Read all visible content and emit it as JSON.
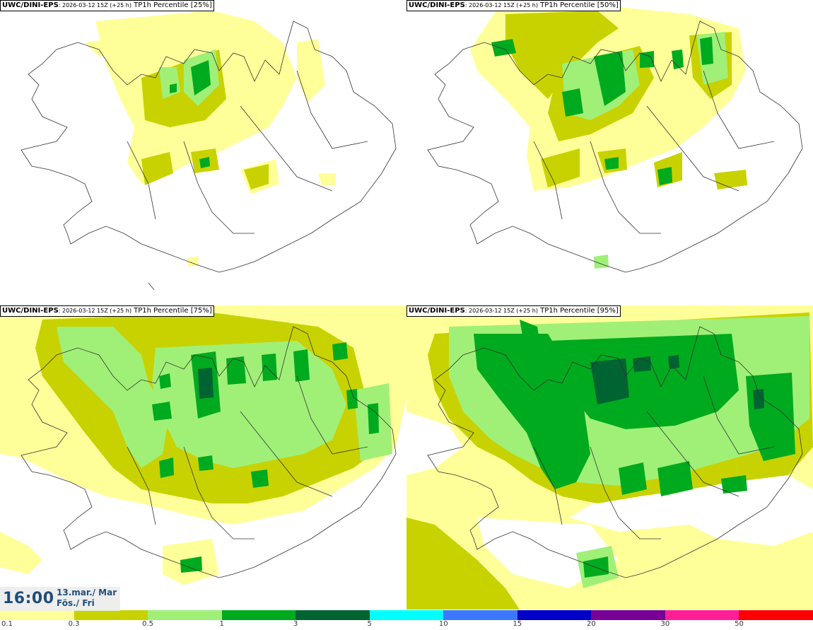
{
  "panels": [
    {
      "model": "UWC/DINI-EPS",
      "run": ": 2026-03-12 15Z (+25 h)",
      "field": " TP1h Percentile [25%]"
    },
    {
      "model": "UWC/DINI-EPS",
      "run": ": 2026-03-12 15Z (+25 h)",
      "field": " TP1h Percentile [50%]"
    },
    {
      "model": "UWC/DINI-EPS",
      "run": ": 2026-03-12 15Z (+25 h)",
      "field": " TP1h Percentile [75%]"
    },
    {
      "model": "UWC/DINI-EPS",
      "run": ": 2026-03-12 15Z (+25 h)",
      "field": " TP1h Percentile [95%]"
    }
  ],
  "valid_time": {
    "time": "16:00",
    "date_line1": "13.mar./ Mar",
    "date_line2": "Fös./ Fri"
  },
  "colorbar": {
    "colors": [
      "#ffff99",
      "#c8d200",
      "#a0f078",
      "#00aa1e",
      "#006432",
      "#00ffff",
      "#3c78ff",
      "#0000c8",
      "#780096",
      "#ff1e96",
      "#ff0000"
    ],
    "ticks": [
      "0.1",
      "0.3",
      "0.5",
      "1",
      "3",
      "5",
      "10",
      "15",
      "20",
      "30",
      "50"
    ]
  },
  "precip_colors": {
    "0.1-0.3": "#ffff99",
    "0.3-0.5": "#c8d200",
    "0.5-1": "#a0f078",
    "1-3": "#00aa1e",
    "3-5": "#006432"
  },
  "map": {
    "region": "Iceland",
    "projection": "lambert",
    "coastline_color": "#333333"
  }
}
